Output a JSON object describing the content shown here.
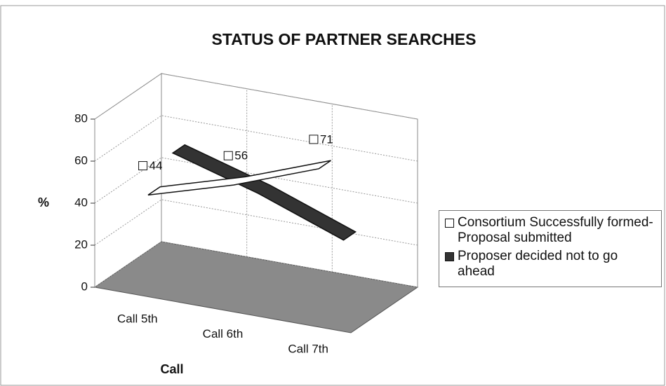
{
  "chart_data": {
    "type": "line3d",
    "title": "STATUS OF PARTNER SEARCHES",
    "x_label": "Call",
    "y_label": "%",
    "categories": [
      "Call 5th",
      "Call 6th",
      "Call 7th"
    ],
    "series": [
      {
        "name": "Consortium Successfully formed- Proposal submitted",
        "color": "#ffffff",
        "values": [
          44,
          56,
          71
        ],
        "show_labels": true
      },
      {
        "name": "Proposer decided not to go ahead",
        "color": "#333333",
        "values": [
          56,
          44,
          29
        ],
        "show_labels": false
      }
    ],
    "ylim": [
      0,
      80
    ],
    "yticks": [
      0,
      20,
      40,
      60,
      80
    ],
    "grid": true,
    "legend": "right"
  }
}
